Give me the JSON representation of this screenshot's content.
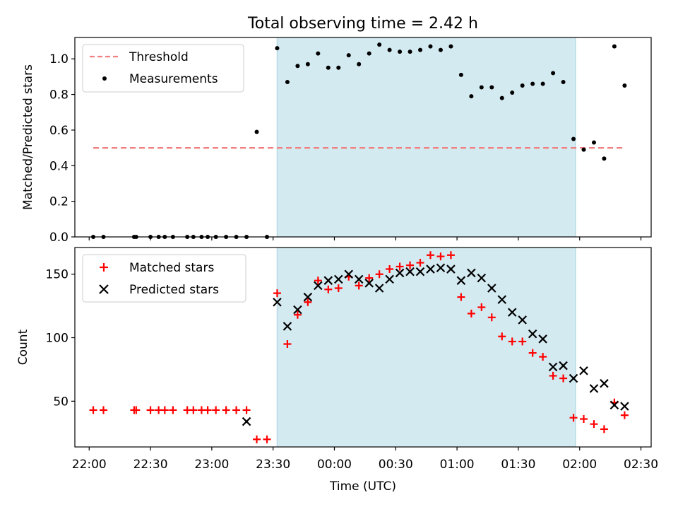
{
  "chart_data": [
    {
      "type": "scatter",
      "title": "Total observing time = 2.42 h",
      "xlabel": "",
      "ylabel": "Matched/Predicted stars",
      "ylim": [
        0.0,
        1.12
      ],
      "xlim": [
        "21:53",
        "02:35"
      ],
      "yticks": [
        "0.0",
        "0.2",
        "0.4",
        "0.6",
        "0.8",
        "1.0"
      ],
      "grid": false,
      "legend_position": "top-left",
      "shaded_interval": {
        "start": "23:32",
        "end": "01:58",
        "color": "#d4eaf1"
      },
      "threshold": {
        "name": "Threshold",
        "value": 0.5,
        "x_start": "22:02",
        "x_end": "02:22",
        "color": "#f08080",
        "style": "dashed"
      },
      "series": [
        {
          "name": "Measurements",
          "color": "#000000",
          "marker": "dot",
          "points": [
            [
              "22:02",
              0.0
            ],
            [
              "22:07",
              0.0
            ],
            [
              "22:22",
              0.0
            ],
            [
              "22:23",
              0.0
            ],
            [
              "22:30",
              0.0
            ],
            [
              "22:34",
              0.0
            ],
            [
              "22:37",
              0.0
            ],
            [
              "22:41",
              0.0
            ],
            [
              "22:48",
              0.0
            ],
            [
              "22:51",
              0.0
            ],
            [
              "22:55",
              0.0
            ],
            [
              "22:58",
              0.0
            ],
            [
              "23:02",
              0.0
            ],
            [
              "23:07",
              0.0
            ],
            [
              "23:12",
              0.0
            ],
            [
              "23:17",
              0.0
            ],
            [
              "23:22",
              0.59
            ],
            [
              "23:27",
              0.0
            ],
            [
              "23:32",
              1.06
            ],
            [
              "23:37",
              0.87
            ],
            [
              "23:42",
              0.96
            ],
            [
              "23:47",
              0.97
            ],
            [
              "23:52",
              1.03
            ],
            [
              "23:57",
              0.95
            ],
            [
              "00:02",
              0.95
            ],
            [
              "00:07",
              1.02
            ],
            [
              "00:12",
              0.97
            ],
            [
              "00:17",
              1.03
            ],
            [
              "00:22",
              1.08
            ],
            [
              "00:27",
              1.05
            ],
            [
              "00:32",
              1.04
            ],
            [
              "00:37",
              1.04
            ],
            [
              "00:42",
              1.05
            ],
            [
              "00:47",
              1.07
            ],
            [
              "00:52",
              1.05
            ],
            [
              "00:57",
              1.07
            ],
            [
              "01:02",
              0.91
            ],
            [
              "01:07",
              0.79
            ],
            [
              "01:12",
              0.84
            ],
            [
              "01:17",
              0.84
            ],
            [
              "01:22",
              0.78
            ],
            [
              "01:27",
              0.81
            ],
            [
              "01:32",
              0.85
            ],
            [
              "01:37",
              0.86
            ],
            [
              "01:42",
              0.86
            ],
            [
              "01:47",
              0.92
            ],
            [
              "01:52",
              0.87
            ],
            [
              "01:57",
              0.55
            ],
            [
              "02:02",
              0.49
            ],
            [
              "02:07",
              0.53
            ],
            [
              "02:12",
              0.44
            ],
            [
              "02:17",
              1.07
            ],
            [
              "02:22",
              0.85
            ]
          ]
        }
      ]
    },
    {
      "type": "scatter",
      "title": "",
      "xlabel": "Time (UTC)",
      "ylabel": "Count",
      "ylim": [
        14,
        171
      ],
      "xlim": [
        "21:53",
        "02:35"
      ],
      "xticks": [
        "22:00",
        "22:30",
        "23:00",
        "23:30",
        "00:00",
        "00:30",
        "01:00",
        "01:30",
        "02:00",
        "02:30"
      ],
      "yticks": [
        "50",
        "100",
        "150"
      ],
      "grid": false,
      "legend_position": "top-left",
      "shaded_interval": {
        "start": "23:32",
        "end": "01:58",
        "color": "#d4eaf1"
      },
      "series": [
        {
          "name": "Matched stars",
          "color": "#ff0000",
          "marker": "plus",
          "points": [
            [
              "22:02",
              43
            ],
            [
              "22:07",
              43
            ],
            [
              "22:22",
              43
            ],
            [
              "22:23",
              43
            ],
            [
              "22:30",
              43
            ],
            [
              "22:34",
              43
            ],
            [
              "22:37",
              43
            ],
            [
              "22:41",
              43
            ],
            [
              "22:48",
              43
            ],
            [
              "22:51",
              43
            ],
            [
              "22:55",
              43
            ],
            [
              "22:58",
              43
            ],
            [
              "23:02",
              43
            ],
            [
              "23:07",
              43
            ],
            [
              "23:12",
              43
            ],
            [
              "23:17",
              43
            ],
            [
              "23:22",
              20
            ],
            [
              "23:27",
              20
            ],
            [
              "23:32",
              135
            ],
            [
              "23:37",
              95
            ],
            [
              "23:42",
              118
            ],
            [
              "23:47",
              128
            ],
            [
              "23:52",
              145
            ],
            [
              "23:57",
              138
            ],
            [
              "00:02",
              139
            ],
            [
              "00:07",
              148
            ],
            [
              "00:12",
              141
            ],
            [
              "00:17",
              147
            ],
            [
              "00:22",
              150
            ],
            [
              "00:27",
              154
            ],
            [
              "00:32",
              156
            ],
            [
              "00:37",
              157
            ],
            [
              "00:42",
              159
            ],
            [
              "00:47",
              165
            ],
            [
              "00:52",
              164
            ],
            [
              "00:57",
              165
            ],
            [
              "01:02",
              132
            ],
            [
              "01:07",
              119
            ],
            [
              "01:12",
              124
            ],
            [
              "01:17",
              116
            ],
            [
              "01:22",
              101
            ],
            [
              "01:27",
              97
            ],
            [
              "01:32",
              97
            ],
            [
              "01:37",
              88
            ],
            [
              "01:42",
              85
            ],
            [
              "01:47",
              70
            ],
            [
              "01:52",
              68
            ],
            [
              "01:57",
              37
            ],
            [
              "02:02",
              36
            ],
            [
              "02:07",
              32
            ],
            [
              "02:12",
              28
            ],
            [
              "02:17",
              49
            ],
            [
              "02:22",
              39
            ]
          ]
        },
        {
          "name": "Predicted stars",
          "color": "#000000",
          "marker": "x",
          "points": [
            [
              "23:17",
              34
            ],
            [
              "23:32",
              128
            ],
            [
              "23:37",
              109
            ],
            [
              "23:42",
              122
            ],
            [
              "23:47",
              132
            ],
            [
              "23:52",
              141
            ],
            [
              "23:57",
              145
            ],
            [
              "00:02",
              146
            ],
            [
              "00:07",
              150
            ],
            [
              "00:12",
              146
            ],
            [
              "00:17",
              143
            ],
            [
              "00:22",
              139
            ],
            [
              "00:27",
              146
            ],
            [
              "00:32",
              151
            ],
            [
              "00:37",
              152
            ],
            [
              "00:42",
              152
            ],
            [
              "00:47",
              154
            ],
            [
              "00:52",
              155
            ],
            [
              "00:57",
              154
            ],
            [
              "01:02",
              145
            ],
            [
              "01:07",
              151
            ],
            [
              "01:12",
              147
            ],
            [
              "01:17",
              139
            ],
            [
              "01:22",
              130
            ],
            [
              "01:27",
              120
            ],
            [
              "01:32",
              114
            ],
            [
              "01:37",
              103
            ],
            [
              "01:42",
              99
            ],
            [
              "01:47",
              77
            ],
            [
              "01:52",
              78
            ],
            [
              "01:57",
              68
            ],
            [
              "02:02",
              74
            ],
            [
              "02:07",
              60
            ],
            [
              "02:12",
              64
            ],
            [
              "02:17",
              47
            ],
            [
              "02:22",
              46
            ]
          ]
        }
      ]
    }
  ]
}
